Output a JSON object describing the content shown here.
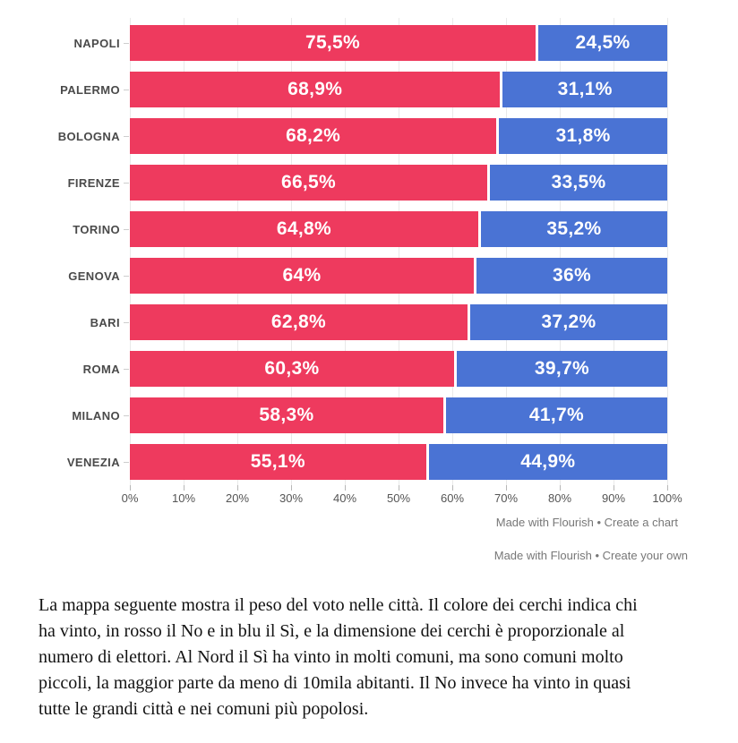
{
  "chart_data": {
    "type": "bar",
    "subtype": "stacked-horizontal-100",
    "title": "",
    "xlabel": "",
    "ylabel": "",
    "xlim": [
      0,
      100
    ],
    "grid": true,
    "legend_position": "none",
    "categories": [
      "NAPOLI",
      "PALERMO",
      "BOLOGNA",
      "FIRENZE",
      "TORINO",
      "GENOVA",
      "BARI",
      "ROMA",
      "MILANO",
      "VENEZIA"
    ],
    "series": [
      {
        "name": "No",
        "color": "#ee3a5e",
        "values": [
          75.5,
          68.9,
          68.2,
          66.5,
          64.8,
          64,
          62.8,
          60.3,
          58.3,
          55.1
        ],
        "labels": [
          "75,5%",
          "68,9%",
          "68,2%",
          "66,5%",
          "64,8%",
          "64%",
          "62,8%",
          "60,3%",
          "58,3%",
          "55,1%"
        ]
      },
      {
        "name": "Sì",
        "color": "#4a73d4",
        "values": [
          24.5,
          31.1,
          31.8,
          33.5,
          35.2,
          36,
          37.2,
          39.7,
          41.7,
          44.9
        ],
        "labels": [
          "24,5%",
          "31,1%",
          "31,8%",
          "33,5%",
          "35,2%",
          "36%",
          "37,2%",
          "39,7%",
          "41,7%",
          "44,9%"
        ]
      }
    ],
    "x_ticks": [
      "0%",
      "10%",
      "20%",
      "30%",
      "40%",
      "50%",
      "60%",
      "70%",
      "80%",
      "90%",
      "100%"
    ]
  },
  "footer": {
    "credit1": "Made with Flourish • Create a chart",
    "credit2": "Made with Flourish • Create your own"
  },
  "paragraph": {
    "lines": [
      "La mappa seguente mostra il peso del voto nelle città. Il colore dei cerchi indica chi",
      "ha vinto, in rosso il No e in blu il Sì, e la dimensione dei cerchi è proporzionale al",
      "numero di elettori. Al Nord il Sì ha vinto in molti comuni, ma sono comuni molto",
      "piccoli, la maggior parte da meno di 10mila abitanti. Il No invece ha vinto in quasi",
      "tutte le grandi città e nei comuni più popolosi."
    ]
  }
}
